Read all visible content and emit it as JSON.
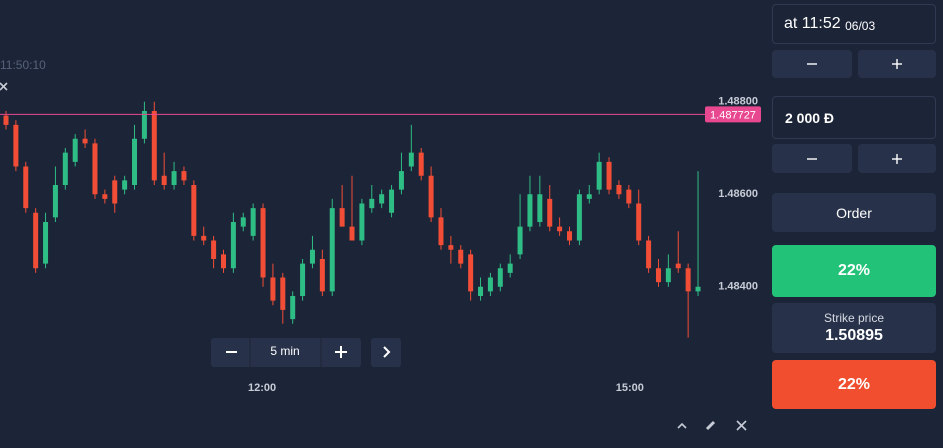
{
  "clock": "11:50:10",
  "timeframe": "5 min",
  "panel": {
    "expiry_time": "at 11:52",
    "expiry_date": "06/03",
    "amount": "2 000 Đ",
    "order": "Order",
    "up_payout": "22%",
    "strike_label": "Strike price",
    "strike_price": "1.50895",
    "down_payout": "22%"
  },
  "chart_data": {
    "type": "candlestick",
    "up_color": "#2ebd85",
    "down_color": "#f24e37",
    "price_line": 1.487727,
    "price_line_color": "#e8488f",
    "ylim": [
      1.4822,
      1.4902
    ],
    "yticks": [
      {
        "value": 1.488,
        "label": "1.48800"
      },
      {
        "value": 1.486,
        "label": "1.48600"
      },
      {
        "value": 1.484,
        "label": "1.48400"
      }
    ],
    "xticks": [
      {
        "value": 25.9,
        "label": "12:00"
      },
      {
        "value": 63.1,
        "label": "15:00"
      }
    ],
    "open": [
      1.4877,
      1.4875,
      1.4866,
      1.4856,
      1.4845,
      1.4855,
      1.4862,
      1.4867,
      1.4872,
      1.4871,
      1.486,
      1.4863,
      1.4861,
      1.4862,
      1.4872,
      1.4878,
      1.4864,
      1.4862,
      1.4865,
      1.4862,
      1.4851,
      1.485,
      1.4847,
      1.4844,
      1.4853,
      1.4851,
      1.4857,
      1.4842,
      1.4842,
      1.4833,
      1.4838,
      1.4845,
      1.4846,
      1.4839,
      1.4857,
      1.4853,
      1.485,
      1.4857,
      1.4858,
      1.4856,
      1.4861,
      1.4866,
      1.4869,
      1.4864,
      1.4855,
      1.4849,
      1.4848,
      1.4847,
      1.4838,
      1.4839,
      1.484,
      1.4843,
      1.4847,
      1.4853,
      1.4854,
      1.4859,
      1.4853,
      1.4852,
      1.485,
      1.4859,
      1.4861,
      1.4867,
      1.4862,
      1.4861,
      1.4858,
      1.485,
      1.4844,
      1.4841,
      1.4845,
      1.4844,
      1.4839
    ],
    "high": [
      1.4878,
      1.4876,
      1.4867,
      1.4857,
      1.4856,
      1.4866,
      1.487,
      1.4873,
      1.4874,
      1.4872,
      1.4861,
      1.4864,
      1.4864,
      1.4875,
      1.488,
      1.488,
      1.4869,
      1.4867,
      1.4866,
      1.4863,
      1.4853,
      1.4851,
      1.4848,
      1.4856,
      1.4856,
      1.4858,
      1.4858,
      1.4845,
      1.4843,
      1.4839,
      1.4846,
      1.4851,
      1.4848,
      1.4859,
      1.4862,
      1.4864,
      1.4859,
      1.4862,
      1.4861,
      1.4862,
      1.4869,
      1.4875,
      1.487,
      1.4866,
      1.4857,
      1.4851,
      1.4849,
      1.4848,
      1.4842,
      1.4843,
      1.4845,
      1.4847,
      1.486,
      1.4864,
      1.4864,
      1.4862,
      1.4855,
      1.4853,
      1.4861,
      1.4862,
      1.4869,
      1.4868,
      1.4863,
      1.4862,
      1.4861,
      1.4851,
      1.4846,
      1.4847,
      1.4852,
      1.4845,
      1.4865
    ],
    "low": [
      1.4874,
      1.4865,
      1.4856,
      1.4843,
      1.4844,
      1.4854,
      1.4861,
      1.4866,
      1.487,
      1.4859,
      1.4858,
      1.4856,
      1.486,
      1.4861,
      1.4871,
      1.4862,
      1.4861,
      1.4861,
      1.4862,
      1.485,
      1.4849,
      1.4844,
      1.4843,
      1.4843,
      1.4852,
      1.485,
      1.484,
      1.4836,
      1.4832,
      1.4832,
      1.4837,
      1.4844,
      1.4838,
      1.4838,
      1.4853,
      1.485,
      1.4849,
      1.4856,
      1.4857,
      1.4855,
      1.486,
      1.4865,
      1.4863,
      1.4854,
      1.4848,
      1.4845,
      1.4844,
      1.4837,
      1.4837,
      1.4838,
      1.4839,
      1.4842,
      1.4846,
      1.4852,
      1.4853,
      1.4852,
      1.4851,
      1.4849,
      1.4849,
      1.4858,
      1.486,
      1.486,
      1.4859,
      1.4857,
      1.4849,
      1.4843,
      1.484,
      1.484,
      1.4843,
      1.4829,
      1.4838
    ],
    "close": [
      1.4875,
      1.4866,
      1.4857,
      1.4844,
      1.4854,
      1.4862,
      1.4869,
      1.4872,
      1.4871,
      1.486,
      1.4859,
      1.4858,
      1.4863,
      1.4872,
      1.4878,
      1.4863,
      1.4862,
      1.4865,
      1.4863,
      1.4851,
      1.485,
      1.4846,
      1.4844,
      1.4854,
      1.4855,
      1.4857,
      1.4842,
      1.4837,
      1.4835,
      1.4838,
      1.4845,
      1.4848,
      1.4839,
      1.4857,
      1.4853,
      1.485,
      1.4858,
      1.4859,
      1.486,
      1.4861,
      1.4865,
      1.4869,
      1.4864,
      1.4855,
      1.4849,
      1.4848,
      1.4845,
      1.4839,
      1.484,
      1.4842,
      1.4844,
      1.4845,
      1.4853,
      1.486,
      1.486,
      1.4853,
      1.4852,
      1.485,
      1.486,
      1.486,
      1.4867,
      1.4861,
      1.486,
      1.4858,
      1.485,
      1.4844,
      1.4841,
      1.4844,
      1.4844,
      1.4839,
      1.484
    ]
  }
}
